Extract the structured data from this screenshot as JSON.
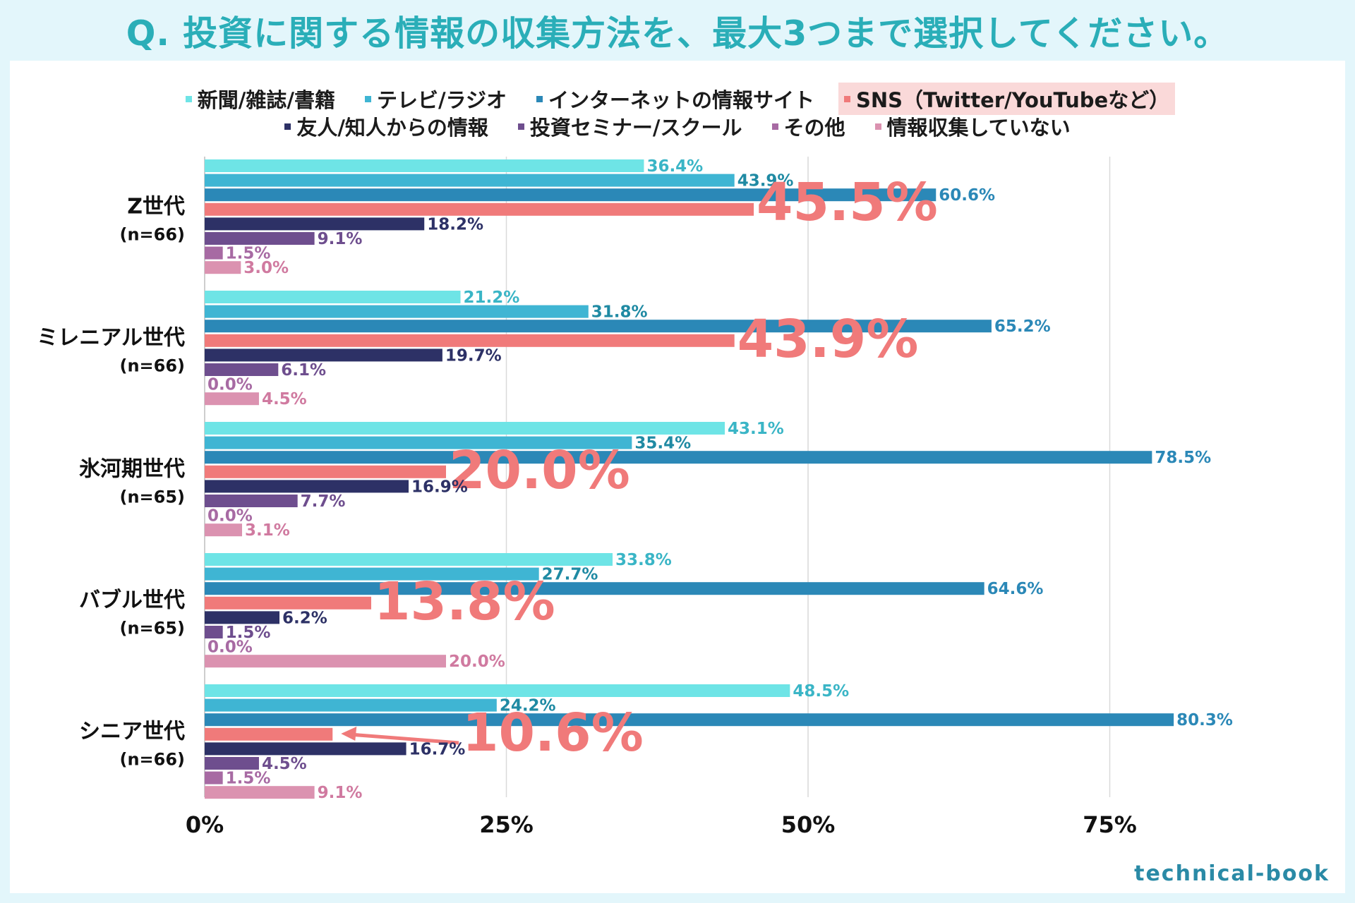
{
  "title": "Q. 投資に関する情報の収集方法を、最大3つまで選択してください。",
  "logo_text": "technical-book",
  "chart_data": {
    "type": "bar",
    "orientation": "horizontal",
    "xlim": [
      0,
      90
    ],
    "x_ticks": [
      0,
      25,
      50,
      75
    ],
    "x_tick_labels": [
      "0%",
      "25%",
      "50%",
      "75%"
    ],
    "grid": true,
    "legend_position": "top",
    "categories": [
      {
        "name": "Z世代",
        "n": "(n=66)"
      },
      {
        "name": "ミレニアル世代",
        "n": "(n=66)"
      },
      {
        "name": "氷河期世代",
        "n": "(n=65)"
      },
      {
        "name": "バブル世代",
        "n": "(n=65)"
      },
      {
        "name": "シニア世代",
        "n": "(n=66)"
      }
    ],
    "series": [
      {
        "name": "新聞/雑誌/書籍",
        "color": "#6ee4e6",
        "label_color": "#3ab5c6",
        "values": [
          36.4,
          21.2,
          43.1,
          33.8,
          48.5
        ]
      },
      {
        "name": "テレビ/ラジオ",
        "color": "#3fb5d3",
        "label_color": "#1f8aa3",
        "values": [
          43.9,
          31.8,
          35.4,
          27.7,
          24.2
        ]
      },
      {
        "name": "インターネットの情報サイト",
        "color": "#2b88b7",
        "label_color": "#2b88b7",
        "values": [
          60.6,
          65.2,
          78.5,
          64.6,
          80.3
        ]
      },
      {
        "name": "SNS（Twitter/YouTubeなど）",
        "color": "#f07a7a",
        "label_color": "#f07a7a",
        "values": [
          45.5,
          43.9,
          20.0,
          13.8,
          10.6
        ],
        "highlight": true
      },
      {
        "name": "友人/知人からの情報",
        "color": "#2d3166",
        "label_color": "#2d3166",
        "values": [
          18.2,
          19.7,
          16.9,
          6.2,
          16.7
        ]
      },
      {
        "name": "投資セミナー/スクール",
        "color": "#6e4e8e",
        "label_color": "#6e4e8e",
        "values": [
          9.1,
          6.1,
          7.7,
          1.5,
          4.5
        ]
      },
      {
        "name": "その他",
        "color": "#a76aa3",
        "label_color": "#a76aa3",
        "values": [
          1.5,
          0.0,
          0.0,
          0.0,
          1.5
        ]
      },
      {
        "name": "情報収集していない",
        "color": "#db92b0",
        "label_color": "#d07aa0",
        "values": [
          3.0,
          4.5,
          3.1,
          20.0,
          9.1
        ]
      }
    ],
    "value_labels": [
      [
        "36.4%",
        "21.2%",
        "43.1%",
        "33.8%",
        "48.5%"
      ],
      [
        "43.9%",
        "31.8%",
        "35.4%",
        "27.7%",
        "24.2%"
      ],
      [
        "60.6%",
        "65.2%",
        "78.5%",
        "64.6%",
        "80.3%"
      ],
      [
        "45.5%",
        "43.9%",
        "20.0%",
        "13.8%",
        "10.6%"
      ],
      [
        "18.2%",
        "19.7%",
        "16.9%",
        "6.2%",
        "16.7%"
      ],
      [
        "9.1%",
        "6.1%",
        "7.7%",
        "1.5%",
        "4.5%"
      ],
      [
        "1.5%",
        "0.0%",
        "0.0%",
        "0.0%",
        "1.5%"
      ],
      [
        "3.0%",
        "4.5%",
        "3.1%",
        "20.0%",
        "9.1%"
      ]
    ]
  }
}
